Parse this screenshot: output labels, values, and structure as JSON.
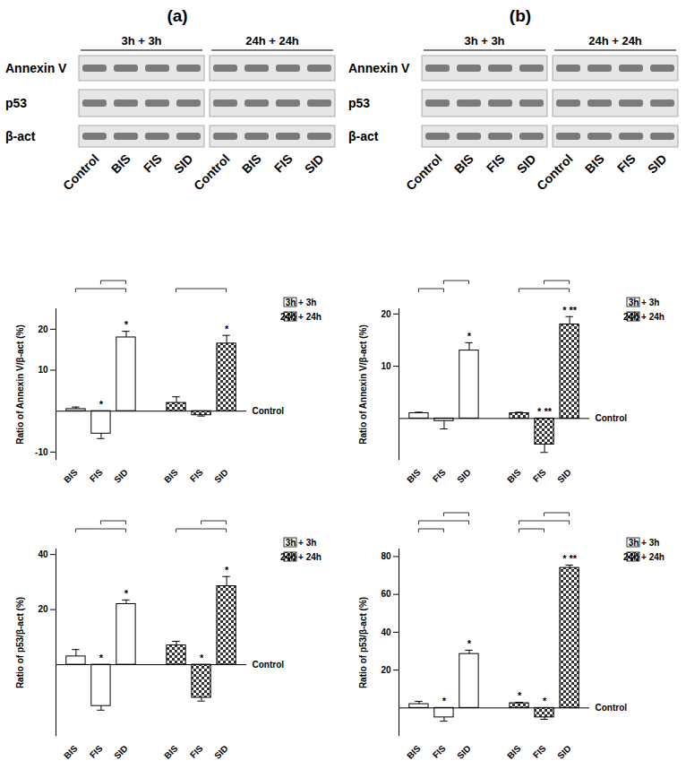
{
  "panels": [
    {
      "label": "(a)",
      "groups": [
        "3h + 3h",
        "24h + 24h"
      ],
      "rows": [
        "Annexin V",
        "p53",
        "β-act"
      ],
      "lanes": [
        "Control",
        "BIS",
        "FIS",
        "SID"
      ]
    },
    {
      "label": "(b)",
      "groups": [
        "3h + 3h",
        "24h + 24h"
      ],
      "rows": [
        "Annexin V",
        "p53",
        "β-act"
      ],
      "lanes": [
        "Control",
        "BIS",
        "FIS",
        "SID"
      ]
    }
  ],
  "chart_data": [
    {
      "type": "bar",
      "y_label": "Ratio of Annexin V/β-act (%)",
      "baseline_label": "Control",
      "legend": "right",
      "categories": [
        "BIS",
        "FIS",
        "SID"
      ],
      "ylim": [
        -12,
        25
      ],
      "yticks": [
        -10,
        10,
        20
      ],
      "series": [
        {
          "name": "3h + 3h",
          "color": "#ffffff",
          "values": [
            0.5,
            -5.5,
            18
          ],
          "errors": [
            0.5,
            1.2,
            1.5
          ],
          "annotations": [
            null,
            "*",
            "*"
          ]
        },
        {
          "name": "24h + 24h",
          "color": "#333333",
          "values": [
            2,
            -1,
            16.5
          ],
          "errors": [
            1.5,
            0.2,
            2
          ],
          "annotations": [
            null,
            null,
            "*"
          ]
        }
      ],
      "comparisons": [
        {
          "series": "3h + 3h",
          "from": "BIS",
          "to": "SID"
        },
        {
          "series": "3h + 3h",
          "from": "FIS",
          "to": "SID"
        },
        {
          "series": "24h + 24h",
          "from": "BIS",
          "to": "SID"
        }
      ]
    },
    {
      "type": "bar",
      "y_label": "Ratio of p53/β-act (%)",
      "baseline_label": "Control",
      "legend": "right",
      "categories": [
        "BIS",
        "FIS",
        "SID"
      ],
      "ylim": [
        -26,
        42
      ],
      "yticks": [
        20,
        40
      ],
      "series": [
        {
          "name": "3h + 3h",
          "color": "#ffffff",
          "values": [
            3,
            -15,
            22
          ],
          "errors": [
            2.5,
            1.5,
            1.5
          ],
          "annotations": [
            null,
            "*",
            "*"
          ]
        },
        {
          "name": "24h + 24h",
          "color": "#333333",
          "values": [
            7,
            -12,
            28.5
          ],
          "errors": [
            1.5,
            1.2,
            3.5
          ],
          "annotations": [
            null,
            "*",
            "*"
          ]
        }
      ],
      "comparisons": [
        {
          "series": "3h + 3h",
          "from": "BIS",
          "to": "SID"
        },
        {
          "series": "3h + 3h",
          "from": "FIS",
          "to": "SID"
        },
        {
          "series": "24h + 24h",
          "from": "BIS",
          "to": "SID"
        },
        {
          "series": "24h + 24h",
          "from": "FIS",
          "to": "SID"
        }
      ]
    },
    {
      "type": "bar",
      "y_label": "Ratio of Annexin V/β-act (%)",
      "baseline_label": "Control",
      "legend": "right",
      "categories": [
        "BIS",
        "FIS",
        "SID"
      ],
      "ylim": [
        -8,
        21
      ],
      "yticks": [
        10,
        20
      ],
      "series": [
        {
          "name": "3h + 3h",
          "color": "#ffffff",
          "values": [
            1,
            -0.5,
            13
          ],
          "errors": [
            0.2,
            1.5,
            1.5
          ],
          "annotations": [
            null,
            null,
            "*"
          ]
        },
        {
          "name": "24h + 24h",
          "color": "#333333",
          "values": [
            1,
            -5,
            18
          ],
          "errors": [
            0.2,
            1.5,
            1.5
          ],
          "annotations": [
            null,
            "* **",
            "* **"
          ]
        }
      ],
      "comparisons": [
        {
          "series": "3h + 3h",
          "from": "BIS",
          "to": "FIS"
        },
        {
          "series": "3h + 3h",
          "from": "FIS",
          "to": "SID"
        },
        {
          "series": "24h + 24h",
          "from": "BIS",
          "to": "SID"
        },
        {
          "series": "24h + 24h",
          "from": "FIS",
          "to": "SID"
        }
      ]
    },
    {
      "type": "bar",
      "y_label": "Ratio of p53/β-act (%)",
      "baseline_label": "Control",
      "legend": "right",
      "categories": [
        "BIS",
        "FIS",
        "SID"
      ],
      "ylim": [
        -15,
        84
      ],
      "yticks": [
        20,
        40,
        60,
        80
      ],
      "series": [
        {
          "name": "3h + 3h",
          "color": "#ffffff",
          "values": [
            2,
            -5,
            28.5
          ],
          "errors": [
            1.5,
            2,
            2
          ],
          "annotations": [
            null,
            "*",
            "*"
          ]
        },
        {
          "name": "24h + 24h",
          "color": "#333333",
          "values": [
            2.5,
            -5,
            74
          ],
          "errors": [
            0.5,
            1,
            1.5
          ],
          "annotations": [
            "*",
            "*",
            "* **"
          ]
        }
      ],
      "comparisons": [
        {
          "series": "3h + 3h",
          "from": "BIS",
          "to": "FIS"
        },
        {
          "series": "3h + 3h",
          "from": "BIS",
          "to": "SID"
        },
        {
          "series": "3h + 3h",
          "from": "FIS",
          "to": "SID"
        },
        {
          "series": "24h + 24h",
          "from": "BIS",
          "to": "FIS"
        },
        {
          "series": "24h + 24h",
          "from": "BIS",
          "to": "SID"
        },
        {
          "series": "24h + 24h",
          "from": "FIS",
          "to": "SID"
        }
      ]
    }
  ]
}
